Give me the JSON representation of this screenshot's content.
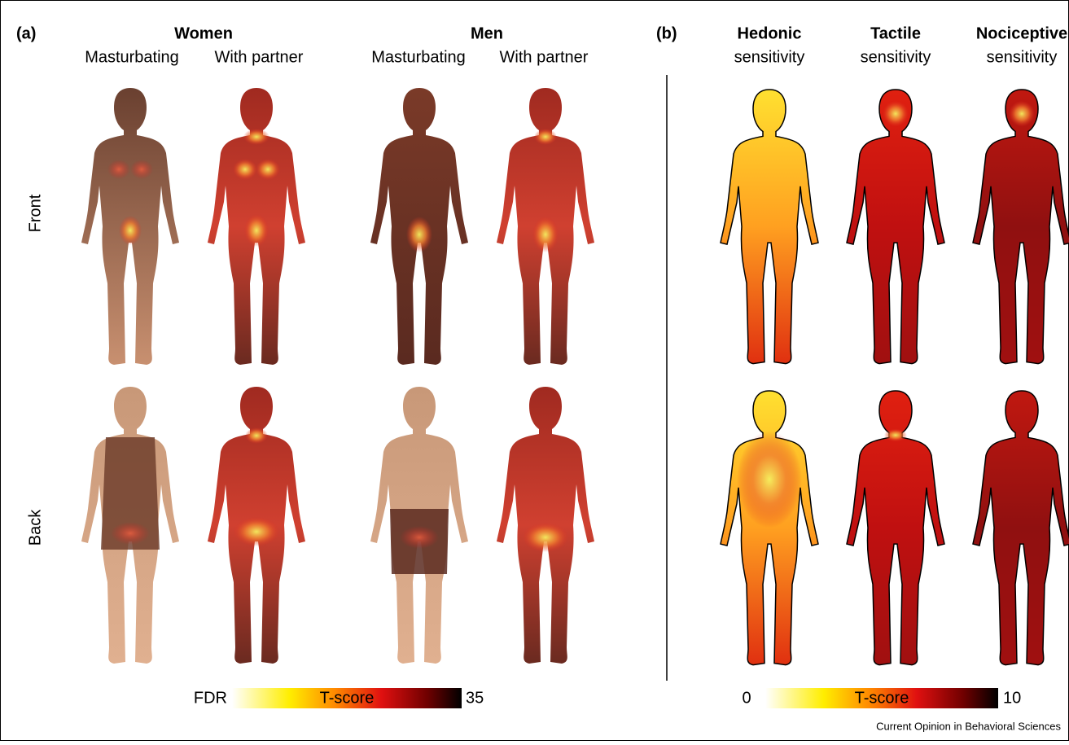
{
  "panel_a": {
    "label": "(a)",
    "groups": [
      {
        "title": "Women",
        "conditions": [
          "Masturbating",
          "With partner"
        ]
      },
      {
        "title": "Men",
        "conditions": [
          "Masturbating",
          "With partner"
        ]
      }
    ],
    "rows": [
      "Front",
      "Back"
    ],
    "colorbar": {
      "min_label": "FDR",
      "title": "T-score",
      "max": 35
    }
  },
  "panel_b": {
    "label": "(b)",
    "columns": [
      {
        "title": "Hedonic",
        "subtitle": "sensitivity"
      },
      {
        "title": "Tactile",
        "subtitle": "sensitivity"
      },
      {
        "title": "Nociceptive",
        "subtitle": "sensitivity"
      }
    ],
    "colorbar": {
      "min": 0,
      "title": "T-score",
      "max": 10
    }
  },
  "source": "Current Opinion in Behavioral Sciences"
}
